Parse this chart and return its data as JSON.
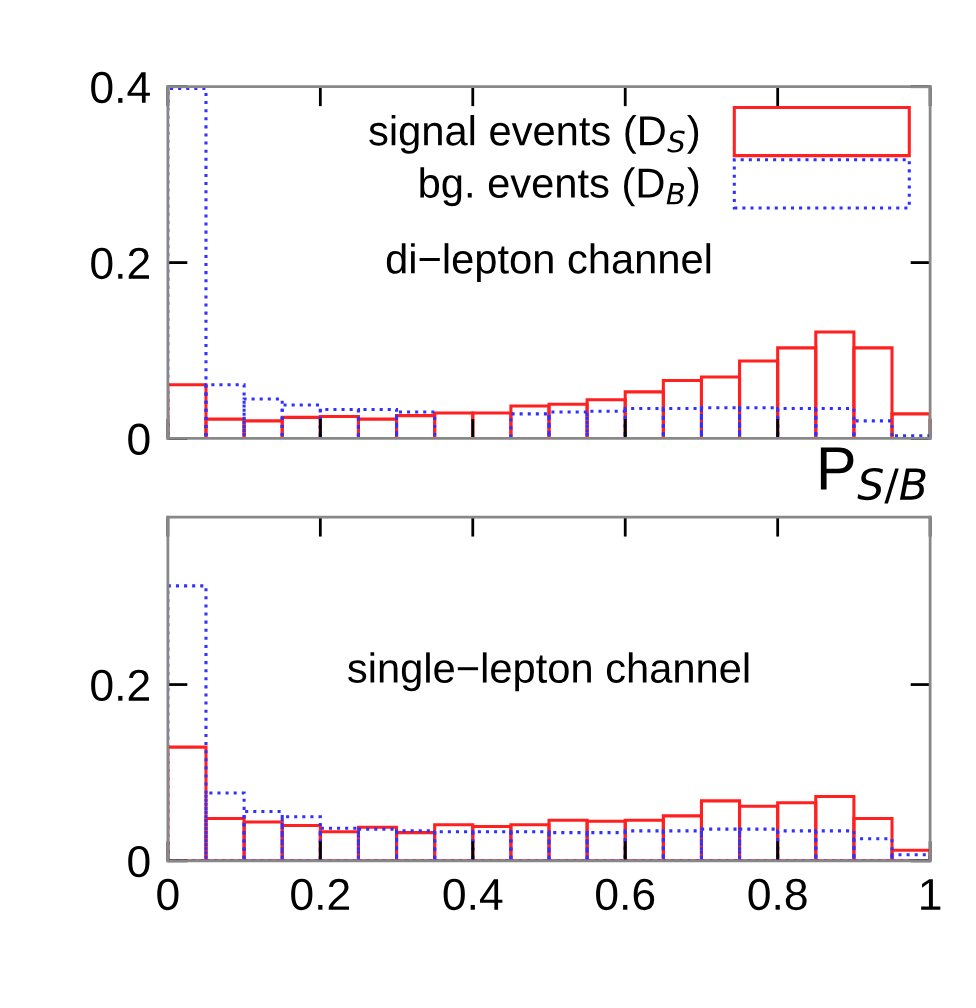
{
  "chart_data": [
    {
      "type": "histogram",
      "xlabel": "P$_{S/B}$",
      "bins": [
        0,
        0.05,
        0.1,
        0.15,
        0.2,
        0.25,
        0.3,
        0.35,
        0.4,
        0.45,
        0.5,
        0.55,
        0.6,
        0.65,
        0.7,
        0.75,
        0.8,
        0.85,
        0.9,
        0.95,
        1
      ],
      "series": [
        {
          "name": "signal events (D$_{S}$)",
          "color": "#ff2020",
          "line_style": "solid",
          "values": [
            0.061,
            0.022,
            0.02,
            0.024,
            0.025,
            0.022,
            0.026,
            0.029,
            0.029,
            0.037,
            0.039,
            0.044,
            0.053,
            0.066,
            0.07,
            0.088,
            0.103,
            0.121,
            0.103,
            0.028
          ]
        },
        {
          "name": "bg. events (D$_{B}$)",
          "color": "#3030ff",
          "line_style": "dotted",
          "values": [
            0.398,
            0.061,
            0.045,
            0.038,
            0.033,
            0.033,
            0.03,
            null,
            null,
            0.028,
            0.03,
            0.031,
            0.034,
            0.034,
            0.035,
            0.035,
            0.034,
            0.034,
            0.02,
            0.003
          ]
        }
      ],
      "xlim": [
        0,
        1
      ],
      "xticks": [
        0,
        0.2,
        0.4,
        0.6,
        0.8,
        1
      ],
      "ylim": [
        0,
        0.4
      ],
      "yticks": [
        0,
        0.2,
        0.4
      ],
      "tick_labels": "y",
      "legend": "top right",
      "annotations": [
        "di−lepton channel"
      ]
    },
    {
      "type": "histogram",
      "bins": [
        0,
        0.05,
        0.1,
        0.15,
        0.2,
        0.25,
        0.3,
        0.35,
        0.4,
        0.45,
        0.5,
        0.55,
        0.6,
        0.65,
        0.7,
        0.75,
        0.8,
        0.85,
        0.9,
        0.95,
        1
      ],
      "series": [
        {
          "color": "#ff2020",
          "line_style": "solid",
          "values": [
            0.129,
            0.048,
            0.044,
            0.04,
            0.033,
            0.038,
            0.032,
            0.041,
            0.039,
            0.041,
            0.046,
            0.045,
            0.046,
            0.051,
            0.068,
            0.062,
            0.066,
            0.073,
            0.048,
            0.012
          ]
        },
        {
          "color": "#3030ff",
          "line_style": "dotted",
          "values": [
            0.312,
            0.077,
            0.056,
            0.05,
            0.037,
            0.036,
            0.034,
            0.033,
            0.033,
            0.033,
            0.032,
            0.032,
            0.034,
            0.034,
            0.036,
            0.036,
            0.034,
            0.034,
            0.025,
            0.007
          ]
        }
      ],
      "xlim": [
        0,
        1
      ],
      "xticks": [
        0,
        0.2,
        0.4,
        0.6,
        0.8,
        1
      ],
      "ylim": [
        0,
        0.39
      ],
      "yticks": [
        0,
        0.2
      ],
      "annotations": [
        "single−lepton channel"
      ]
    }
  ]
}
